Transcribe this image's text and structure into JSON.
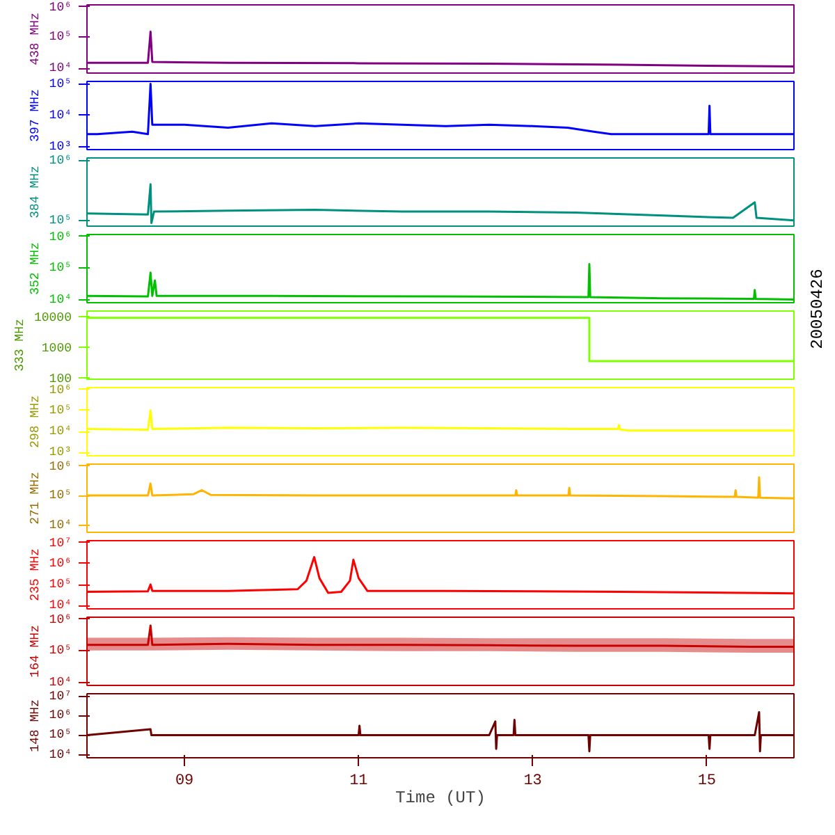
{
  "chart_data": [
    {
      "type": "line",
      "log": true,
      "ylabel": "438 MHz",
      "xlim": [
        7.88,
        16.0
      ],
      "tick_labels": "y",
      "ylim": [
        7000,
        1100000
      ],
      "yticks": [
        {
          "value": 10000,
          "label": "10⁴"
        },
        {
          "value": 100000,
          "label": "10⁵"
        },
        {
          "value": 1000000,
          "label": "10⁶"
        }
      ],
      "series": [
        {
          "color": "#800080",
          "x": [
            7.88,
            8.58,
            8.61,
            8.63,
            9.5,
            11.0,
            12.5,
            14.0,
            15.0,
            16.0
          ],
          "values": [
            15000,
            15000,
            150000,
            16000,
            15000,
            14500,
            14000,
            13000,
            12000,
            11500
          ]
        }
      ]
    },
    {
      "type": "line",
      "log": true,
      "ylabel": "397 MHz",
      "xlim": [
        7.88,
        16.0
      ],
      "tick_labels": "y",
      "ylim": [
        800,
        120000
      ],
      "yticks": [
        {
          "value": 1000,
          "label": "10³"
        },
        {
          "value": 10000,
          "label": "10⁴"
        },
        {
          "value": 100000,
          "label": "10⁵"
        }
      ],
      "series": [
        {
          "color": "#0000ff",
          "x": [
            7.88,
            8.0,
            8.4,
            8.58,
            8.61,
            8.63,
            9.0,
            9.5,
            10.0,
            10.5,
            11.0,
            11.5,
            12.0,
            12.5,
            13.0,
            13.4,
            13.7,
            13.9,
            15.02,
            15.03,
            15.04,
            16.0
          ],
          "values": [
            2500,
            2500,
            3000,
            2500,
            100000,
            5000,
            5000,
            4000,
            5500,
            4500,
            5500,
            5000,
            4500,
            5000,
            4500,
            4000,
            3000,
            2500,
            2500,
            20000,
            2500,
            2500
          ]
        }
      ]
    },
    {
      "type": "line",
      "log": true,
      "ylabel": "384 MHz",
      "xlim": [
        7.88,
        16.0
      ],
      "tick_labels": "y",
      "ylim": [
        80000,
        1100000
      ],
      "yticks": [
        {
          "value": 100000,
          "label": "10⁵"
        },
        {
          "value": 1000000,
          "label": "10⁶"
        }
      ],
      "series": [
        {
          "color": "#009080",
          "x": [
            7.88,
            8.58,
            8.61,
            8.62,
            8.65,
            9.5,
            10.5,
            11.5,
            12.5,
            13.5,
            14.5,
            15.3,
            15.55,
            15.57,
            16.0
          ],
          "values": [
            130000,
            125000,
            400000,
            90000,
            140000,
            145000,
            150000,
            140000,
            140000,
            135000,
            120000,
            110000,
            200000,
            110000,
            100000
          ]
        }
      ]
    },
    {
      "type": "line",
      "log": true,
      "ylabel": "352 MHz",
      "annotations": [
        "20050426"
      ],
      "xlim": [
        7.88,
        16.0
      ],
      "tick_labels": "y",
      "ylim": [
        8000,
        1100000
      ],
      "yticks": [
        {
          "value": 10000,
          "label": "10⁴"
        },
        {
          "value": 100000,
          "label": "10⁵"
        },
        {
          "value": 1000000,
          "label": "10⁶"
        }
      ],
      "series": [
        {
          "color": "#00c000",
          "x": [
            7.88,
            8.58,
            8.61,
            8.63,
            8.66,
            8.68,
            10.0,
            12.0,
            13.64,
            13.65,
            13.66,
            14.5,
            15.54,
            15.55,
            15.56,
            16.0
          ],
          "values": [
            13000,
            12500,
            70000,
            13000,
            40000,
            13000,
            13000,
            12500,
            12000,
            130000,
            12000,
            11000,
            10500,
            20000,
            10500,
            10000
          ]
        }
      ]
    },
    {
      "type": "line",
      "log": true,
      "ylabel": "333 MHz",
      "xlim": [
        7.88,
        16.0
      ],
      "tick_labels": "y",
      "ylim": [
        90,
        15000
      ],
      "yticks": [
        100,
        1000,
        10000
      ],
      "series": [
        {
          "color": "#80ff00",
          "x": [
            7.88,
            13.65,
            13.65,
            16.0
          ],
          "values": [
            9000,
            9000,
            350,
            350
          ]
        }
      ]
    },
    {
      "type": "line",
      "log": true,
      "ylabel": "298 MHz",
      "xlim": [
        7.88,
        16.0
      ],
      "tick_labels": "y",
      "ylim": [
        700,
        1200000
      ],
      "yticks": [
        {
          "value": 1000,
          "label": "10³"
        },
        {
          "value": 10000,
          "label": "10⁴"
        },
        {
          "value": 100000,
          "label": "10⁵"
        },
        {
          "value": 1000000,
          "label": "10⁶"
        }
      ],
      "series": [
        {
          "color": "#ffff00",
          "x": [
            7.88,
            8.58,
            8.61,
            8.63,
            9.5,
            10.5,
            11.5,
            12.5,
            13.5,
            13.98,
            13.99,
            14.0,
            14.1,
            16.0
          ],
          "values": [
            13000,
            12000,
            100000,
            13000,
            15000,
            14000,
            15000,
            14000,
            13000,
            13000,
            20000,
            12500,
            11000,
            11000
          ]
        }
      ]
    },
    {
      "type": "line",
      "log": true,
      "ylabel": "271 MHz",
      "xlim": [
        7.88,
        16.0
      ],
      "tick_labels": "y",
      "ylim": [
        6000,
        1100000
      ],
      "yticks": [
        {
          "value": 10000,
          "label": "10⁴"
        },
        {
          "value": 100000,
          "label": "10⁵"
        },
        {
          "value": 1000000,
          "label": "10⁶"
        }
      ],
      "series": [
        {
          "color": "#ffb400",
          "x": [
            7.88,
            8.58,
            8.61,
            8.63,
            9.1,
            9.2,
            9.3,
            10.5,
            12.0,
            12.8,
            12.81,
            12.82,
            13.41,
            13.42,
            13.43,
            14.5,
            15.32,
            15.33,
            15.34,
            15.59,
            15.6,
            15.61,
            16.0
          ],
          "values": [
            100000,
            100000,
            250000,
            100000,
            110000,
            150000,
            105000,
            100000,
            100000,
            100000,
            150000,
            100000,
            100000,
            180000,
            100000,
            95000,
            90000,
            150000,
            90000,
            85000,
            400000,
            85000,
            80000
          ]
        }
      ]
    },
    {
      "type": "line",
      "log": true,
      "ylabel": "235 MHz",
      "xlim": [
        7.88,
        16.0
      ],
      "tick_labels": "y",
      "ylim": [
        7000,
        12000000
      ],
      "yticks": [
        {
          "value": 10000,
          "label": "10⁴"
        },
        {
          "value": 100000,
          "label": "10⁵"
        },
        {
          "value": 1000000,
          "label": "10⁶"
        },
        {
          "value": 10000000,
          "label": "10⁷"
        }
      ],
      "series": [
        {
          "color": "#ff0000",
          "x": [
            7.88,
            8.58,
            8.61,
            8.63,
            9.5,
            10.3,
            10.4,
            10.49,
            10.55,
            10.65,
            10.8,
            10.9,
            10.94,
            11.0,
            11.1,
            12.0,
            13.0,
            14.0,
            15.0,
            16.0
          ],
          "values": [
            45000,
            48000,
            100000,
            50000,
            50000,
            60000,
            150000,
            2000000,
            200000,
            40000,
            45000,
            150000,
            1500000,
            200000,
            50000,
            50000,
            48000,
            45000,
            42000,
            38000
          ]
        }
      ]
    },
    {
      "type": "line",
      "log": true,
      "ylabel": "164 MHz",
      "xlim": [
        7.88,
        16.0
      ],
      "tick_labels": "y",
      "ylim": [
        8000,
        1100000
      ],
      "yticks": [
        {
          "value": 10000,
          "label": "10⁴"
        },
        {
          "value": 100000,
          "label": "10⁵"
        },
        {
          "value": 1000000,
          "label": "10⁶"
        }
      ],
      "series": [
        {
          "color": "#c80000",
          "x": [
            7.88,
            8.58,
            8.61,
            8.63,
            9.5,
            10.5,
            11.5,
            12.5,
            13.5,
            14.5,
            15.5,
            16.0
          ],
          "values": [
            150000,
            150000,
            600000,
            150000,
            160000,
            150000,
            150000,
            145000,
            140000,
            140000,
            130000,
            130000
          ],
          "lower": [
            100000,
            100000,
            100000,
            100000,
            105000,
            100000,
            95000,
            95000,
            90000,
            90000,
            85000,
            85000
          ],
          "upper": [
            250000,
            250000,
            250000,
            250000,
            260000,
            250000,
            250000,
            240000,
            240000,
            240000,
            230000,
            230000
          ]
        }
      ]
    },
    {
      "type": "line",
      "log": true,
      "ylabel": "148 MHz",
      "xlim": [
        7.88,
        16.0
      ],
      "xticks": [
        {
          "value": 9,
          "label": "09"
        },
        {
          "value": 11,
          "label": "11"
        },
        {
          "value": 13,
          "label": "13"
        },
        {
          "value": 15,
          "label": "15"
        }
      ],
      "xlabel": "Time (UT)",
      "ylim": [
        7000,
        13000000
      ],
      "yticks": [
        {
          "value": 10000,
          "label": "10⁴"
        },
        {
          "value": 100000,
          "label": "10⁵"
        },
        {
          "value": 1000000,
          "label": "10⁶"
        },
        {
          "value": 10000000,
          "label": "10⁷"
        }
      ],
      "series": [
        {
          "color": "#6e0000",
          "x": [
            7.88,
            8.61,
            8.62,
            10.1,
            11.0,
            11.01,
            11.02,
            12.5,
            12.57,
            12.58,
            12.59,
            12.78,
            12.79,
            12.8,
            13.64,
            13.65,
            13.66,
            14.7,
            15.02,
            15.03,
            15.04,
            15.55,
            15.6,
            15.61,
            15.62,
            16.0
          ],
          "values": [
            100000,
            200000,
            100000,
            100000,
            100000,
            300000,
            100000,
            100000,
            500000,
            20000,
            100000,
            100000,
            600000,
            100000,
            100000,
            15000,
            100000,
            100000,
            100000,
            20000,
            100000,
            100000,
            1500000,
            15000,
            100000,
            100000
          ]
        }
      ]
    }
  ]
}
